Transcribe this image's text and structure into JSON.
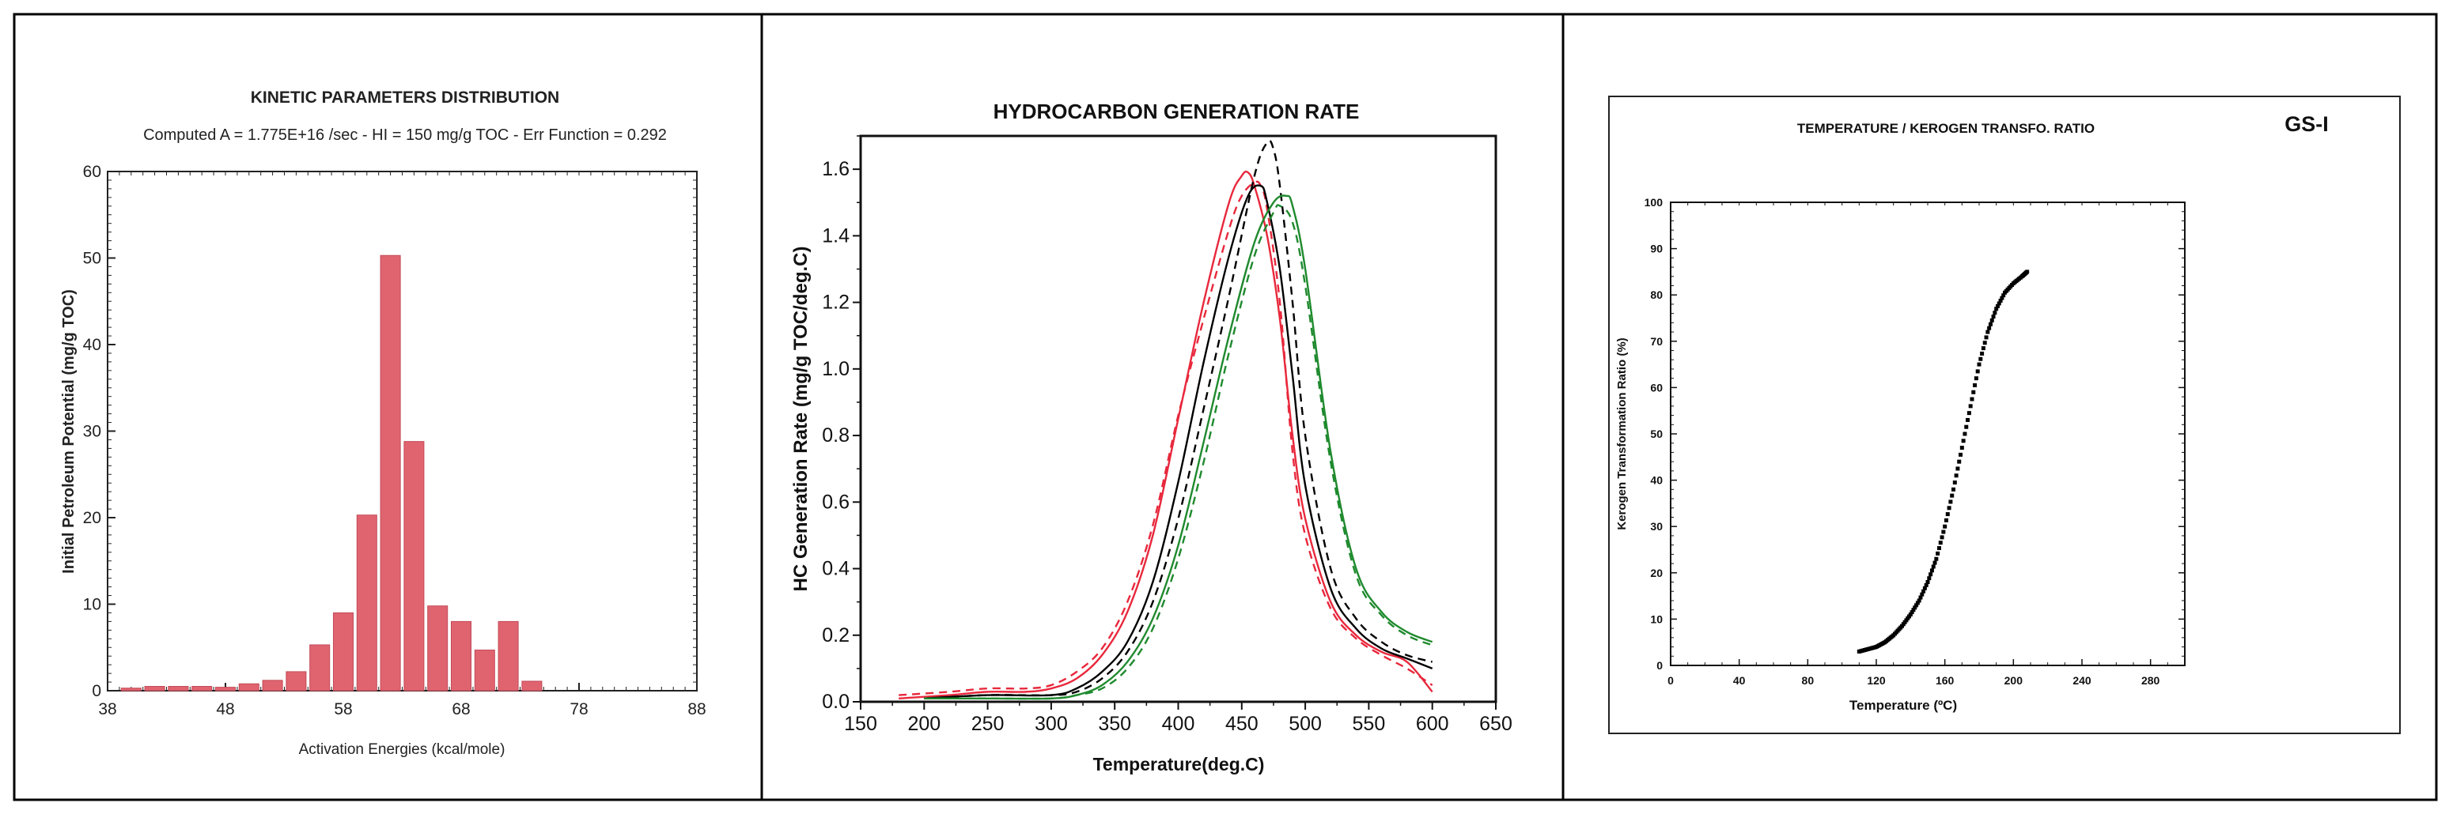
{
  "colors": {
    "bar": "#E06470",
    "bar_stroke": "#c24a57",
    "red": "#E8283C",
    "green": "#1F8A2E",
    "black": "#000000"
  },
  "panel1": {
    "title": "KINETIC PARAMETERS DISTRIBUTION",
    "subtitle": "Computed A = 1.775E+16 /sec - HI = 150 mg/g TOC - Err Function = 0.292",
    "ylabel": "Initial Petroleum Potential (mg/g TOC)",
    "xlabel": "Activation Energies (kcal/mole)",
    "xticks": [
      "38",
      "48",
      "58",
      "68",
      "78",
      "88"
    ],
    "yticks": [
      "0",
      "10",
      "20",
      "30",
      "40",
      "50",
      "60"
    ]
  },
  "panel2": {
    "title": "HYDROCARBON GENERATION RATE",
    "ylabel": "HC Generation Rate (mg/g TOC/deg.C)",
    "xlabel": "Temperature(deg.C)",
    "xticks": [
      "150",
      "200",
      "250",
      "300",
      "350",
      "400",
      "450",
      "500",
      "550",
      "600",
      "650"
    ],
    "yticks": [
      "0.0",
      "0.2",
      "0.4",
      "0.6",
      "0.8",
      "1.0",
      "1.2",
      "1.4",
      "1.6"
    ]
  },
  "panel3": {
    "title": "TEMPERATURE / KEROGEN TRANSFO. RATIO",
    "tag": "GS-I",
    "ylabel": "Kerogen Transformation Ratio (%)",
    "xlabel": "Temperature (ºC)",
    "xticks": [
      "0",
      "40",
      "80",
      "120",
      "160",
      "200",
      "240",
      "280"
    ],
    "yticks": [
      "0",
      "10",
      "20",
      "30",
      "40",
      "50",
      "60",
      "70",
      "80",
      "90",
      "100"
    ]
  },
  "chart_data": [
    {
      "type": "bar",
      "title": "KINETIC PARAMETERS DISTRIBUTION",
      "subtitle": "Computed A = 1.775E+16 /sec - HI = 150 mg/g TOC - Err Function = 0.292",
      "xlabel": "Activation Energies (kcal/mole)",
      "ylabel": "Initial Petroleum Potential (mg/g TOC)",
      "xlim": [
        38,
        88
      ],
      "ylim": [
        0,
        60
      ],
      "x": [
        40,
        42,
        44,
        46,
        48,
        50,
        52,
        54,
        56,
        58,
        60,
        62,
        64,
        66,
        68,
        70,
        72,
        74
      ],
      "values": [
        0.3,
        0.5,
        0.5,
        0.5,
        0.4,
        0.8,
        1.2,
        2.2,
        5.3,
        9.0,
        20.3,
        50.3,
        28.8,
        9.8,
        8.0,
        4.7,
        8.0,
        1.1
      ],
      "grid": false
    },
    {
      "type": "line",
      "title": "HYDROCARBON GENERATION RATE",
      "xlabel": "Temperature(deg.C)",
      "ylabel": "HC Generation Rate (mg/g TOC/deg.C)",
      "xlim": [
        150,
        650
      ],
      "ylim": [
        0,
        1.7
      ],
      "grid": false,
      "series": [
        {
          "color": "#E8283C",
          "style": "solid",
          "x": [
            180,
            220,
            250,
            280,
            300,
            320,
            340,
            360,
            380,
            400,
            420,
            440,
            450,
            455,
            460,
            470,
            480,
            490,
            500,
            520,
            540,
            560,
            580,
            600
          ],
          "y": [
            0.01,
            0.02,
            0.03,
            0.03,
            0.04,
            0.07,
            0.14,
            0.27,
            0.5,
            0.85,
            1.2,
            1.5,
            1.58,
            1.59,
            1.55,
            1.4,
            1.15,
            0.8,
            0.55,
            0.3,
            0.2,
            0.15,
            0.12,
            0.03
          ]
        },
        {
          "color": "#E8283C",
          "style": "dashed",
          "x": [
            180,
            220,
            250,
            280,
            300,
            320,
            340,
            360,
            380,
            400,
            420,
            440,
            450,
            460,
            465,
            470,
            480,
            490,
            500,
            520,
            540,
            560,
            580,
            600
          ],
          "y": [
            0.02,
            0.03,
            0.04,
            0.04,
            0.05,
            0.09,
            0.16,
            0.3,
            0.53,
            0.86,
            1.15,
            1.42,
            1.52,
            1.56,
            1.55,
            1.48,
            1.2,
            0.75,
            0.5,
            0.28,
            0.19,
            0.14,
            0.1,
            0.05
          ]
        },
        {
          "color": "#000000",
          "style": "solid",
          "x": [
            200,
            250,
            300,
            320,
            340,
            360,
            380,
            400,
            420,
            440,
            455,
            465,
            470,
            480,
            490,
            500,
            520,
            540,
            560,
            580,
            600
          ],
          "y": [
            0.01,
            0.02,
            0.02,
            0.04,
            0.09,
            0.18,
            0.36,
            0.66,
            1.02,
            1.34,
            1.52,
            1.55,
            1.5,
            1.3,
            0.98,
            0.65,
            0.34,
            0.22,
            0.16,
            0.13,
            0.1
          ]
        },
        {
          "color": "#000000",
          "style": "dashed",
          "x": [
            200,
            250,
            300,
            320,
            340,
            360,
            380,
            400,
            420,
            440,
            460,
            470,
            475,
            480,
            490,
            500,
            520,
            540,
            560,
            580,
            600
          ],
          "y": [
            0.01,
            0.02,
            0.02,
            0.03,
            0.07,
            0.15,
            0.3,
            0.55,
            0.88,
            1.22,
            1.58,
            1.68,
            1.66,
            1.55,
            1.2,
            0.8,
            0.4,
            0.25,
            0.18,
            0.14,
            0.12
          ]
        },
        {
          "color": "#1F8A2E",
          "style": "solid",
          "x": [
            200,
            250,
            300,
            320,
            340,
            360,
            380,
            400,
            420,
            440,
            460,
            475,
            485,
            490,
            500,
            520,
            540,
            560,
            580,
            600
          ],
          "y": [
            0.01,
            0.01,
            0.01,
            0.02,
            0.05,
            0.12,
            0.25,
            0.47,
            0.78,
            1.1,
            1.38,
            1.5,
            1.52,
            1.49,
            1.3,
            0.75,
            0.4,
            0.27,
            0.21,
            0.18
          ]
        },
        {
          "color": "#1F8A2E",
          "style": "dashed",
          "x": [
            200,
            250,
            300,
            320,
            340,
            360,
            380,
            400,
            420,
            440,
            460,
            475,
            480,
            490,
            500,
            520,
            540,
            560,
            580,
            600
          ],
          "y": [
            0.01,
            0.01,
            0.01,
            0.02,
            0.04,
            0.1,
            0.22,
            0.43,
            0.72,
            1.05,
            1.34,
            1.47,
            1.49,
            1.44,
            1.25,
            0.72,
            0.38,
            0.26,
            0.2,
            0.17
          ]
        }
      ]
    },
    {
      "type": "scatter",
      "title": "TEMPERATURE / KEROGEN TRANSFO. RATIO",
      "xlabel": "Temperature (ºC)",
      "ylabel": "Kerogen Transformation Ratio (%)",
      "xlim": [
        0,
        300
      ],
      "ylim": [
        0,
        100
      ],
      "grid": false,
      "series": [
        {
          "color": "#000000",
          "x": [
            110,
            115,
            120,
            125,
            130,
            135,
            140,
            145,
            150,
            155,
            160,
            165,
            170,
            175,
            180,
            185,
            190,
            195,
            200,
            205,
            208
          ],
          "y": [
            3,
            3.5,
            4,
            5,
            6.5,
            8.5,
            11,
            14,
            18,
            23,
            30,
            38,
            47,
            56,
            65,
            72,
            77,
            80.5,
            82.5,
            84,
            85
          ]
        }
      ]
    }
  ]
}
